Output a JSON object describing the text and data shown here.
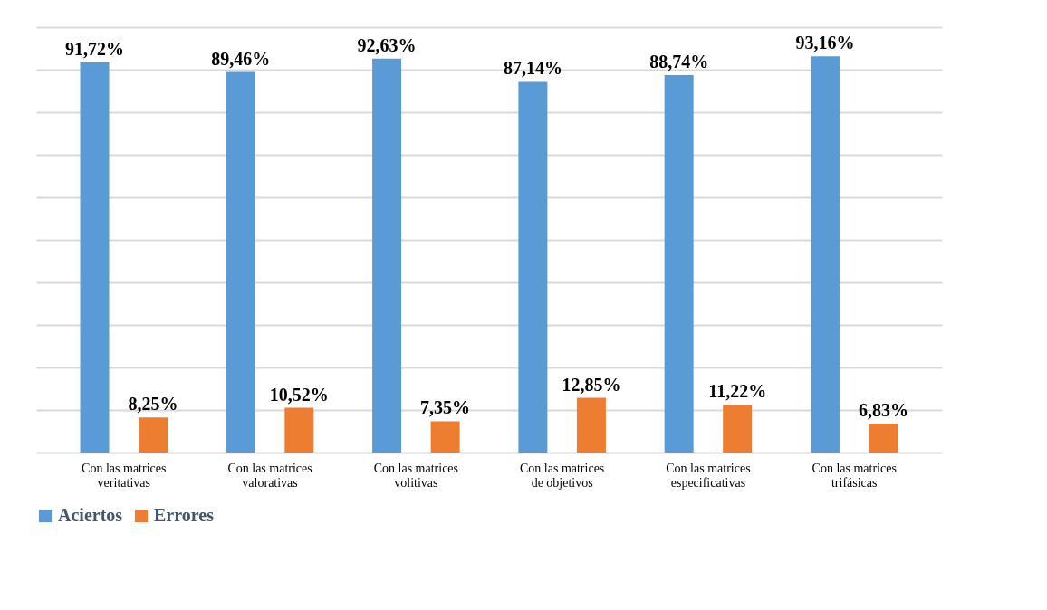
{
  "chart_data": {
    "type": "bar",
    "categories": [
      "Con las matrices veritativas",
      "Con las matrices valorativas",
      "Con las matrices volitivas",
      "Con las matrices de objetivos",
      "Con las matrices especificativas",
      "Con las matrices trifásicas"
    ],
    "series": [
      {
        "name": "Aciertos",
        "color": "#5b9bd5",
        "values": [
          91.72,
          89.46,
          92.63,
          87.14,
          88.74,
          93.16
        ],
        "value_labels": [
          "91,72%",
          "89,46%",
          "92,63%",
          "87,14%",
          "88,74%",
          "93,16%"
        ]
      },
      {
        "name": "Errores",
        "color": "#ed7d31",
        "values": [
          8.25,
          10.52,
          7.35,
          12.85,
          11.22,
          6.83
        ],
        "value_labels": [
          "8,25%",
          "10,52%",
          "7,35%",
          "12,85%",
          "11,22%",
          "6,83%"
        ]
      }
    ],
    "grid": "y",
    "tick_labels": "x",
    "legend": "bottom"
  }
}
